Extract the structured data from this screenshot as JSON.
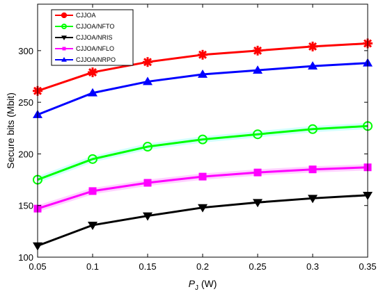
{
  "chart_data": {
    "type": "line",
    "title": "",
    "xlabel": "P",
    "xlabel_sub": "J",
    "xlabel_unit": " (W)",
    "ylabel": "Secure bits (Mbit)",
    "x": [
      0.05,
      0.1,
      0.15,
      0.2,
      0.25,
      0.3,
      0.35
    ],
    "xlim": [
      0.05,
      0.35
    ],
    "ylim": [
      100,
      345
    ],
    "xticks": [
      "0.05",
      "0.1",
      "0.15",
      "0.2",
      "0.25",
      "0.3",
      "0.35"
    ],
    "yticks": [
      "100",
      "150",
      "200",
      "250",
      "300"
    ],
    "ytick_values": [
      100,
      150,
      200,
      250,
      300
    ],
    "grid": false,
    "legend_position": "top-left",
    "series": [
      {
        "name": "CJJOA",
        "color": "#ff0000",
        "marker": "asterisk",
        "glow": "",
        "values": [
          261,
          279,
          289,
          296,
          300,
          304,
          307
        ]
      },
      {
        "name": "CJJOA/NFTO",
        "color": "#00ff00",
        "marker": "circle",
        "glow": "#00ffff",
        "values": [
          175,
          195,
          207,
          214,
          219,
          224,
          227
        ]
      },
      {
        "name": "CJJOA/NRIS",
        "color": "#000000",
        "marker": "triangle-down",
        "glow": "",
        "values": [
          111,
          131,
          140,
          148,
          153,
          157,
          160
        ]
      },
      {
        "name": "CJJOA/NFLO",
        "color": "#ff00ff",
        "marker": "square",
        "glow": "#ff00ff",
        "values": [
          147,
          164,
          172,
          178,
          182,
          185,
          187
        ]
      },
      {
        "name": "CJJOA/NRPO",
        "color": "#0000ff",
        "marker": "triangle-up",
        "glow": "",
        "values": [
          238,
          259,
          270,
          277,
          281,
          285,
          288
        ]
      }
    ]
  }
}
